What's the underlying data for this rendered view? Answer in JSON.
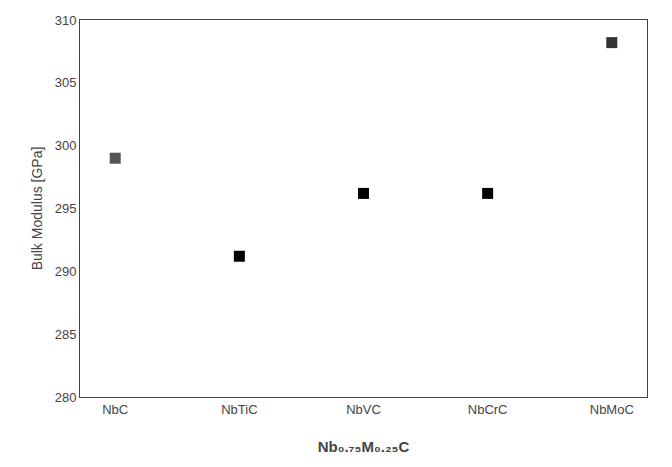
{
  "chart_data": {
    "type": "scatter",
    "categories": [
      "NbC",
      "NbTiC",
      "NbVC",
      "NbCrC",
      "NbMoC"
    ],
    "values": [
      299.0,
      291.2,
      296.2,
      296.2,
      308.2
    ],
    "colors": [
      "#555555",
      "#000000",
      "#000000",
      "#000000",
      "#333333"
    ],
    "marker": "square",
    "xlabel": "Nb₀.₇₅M₀.₂₅C",
    "ylabel": "Bulk Modulus [GPa]",
    "ylim": [
      280,
      310
    ],
    "yticks": [
      280,
      285,
      290,
      295,
      300,
      305,
      310
    ],
    "grid": false
  }
}
